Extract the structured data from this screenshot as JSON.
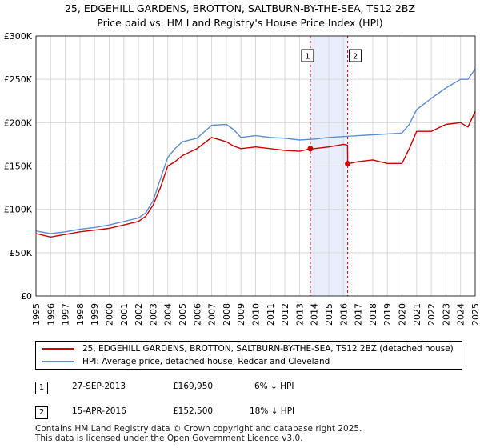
{
  "title_line1": "25, EDGEHILL GARDENS, BROTTON, SALTBURN-BY-THE-SEA, TS12 2BZ",
  "title_line2": "Price paid vs. HM Land Registry's House Price Index (HPI)",
  "legend": {
    "property": "25, EDGEHILL GARDENS, BROTTON, SALTBURN-BY-THE-SEA, TS12 2BZ (detached house)",
    "hpi": "HPI: Average price, detached house, Redcar and Cleveland"
  },
  "colors": {
    "property": "#cc0000",
    "hpi": "#5b8fd4",
    "shade": "#e8eefb",
    "grid": "#d9d9d9",
    "marker_line": "#cc0000"
  },
  "transactions": [
    {
      "num": "1",
      "date": "27-SEP-2013",
      "price": "£169,950",
      "pct": "6% ↓ HPI"
    },
    {
      "num": "2",
      "date": "15-APR-2016",
      "price": "£152,500",
      "pct": "18% ↓ HPI"
    }
  ],
  "footer_line1": "Contains HM Land Registry data © Crown copyright and database right 2025.",
  "footer_line2": "This data is licensed under the Open Government Licence v3.0.",
  "chart_data": {
    "type": "line",
    "title": "25, EDGEHILL GARDENS, BROTTON, SALTBURN-BY-THE-SEA, TS12 2BZ — Price paid vs. HM Land Registry's House Price Index (HPI)",
    "xlabel": "",
    "ylabel": "",
    "xlim": [
      1995,
      2025
    ],
    "ylim": [
      0,
      300000
    ],
    "y_ticks": [
      0,
      50000,
      100000,
      150000,
      200000,
      250000,
      300000
    ],
    "y_tick_labels": [
      "£0",
      "£50K",
      "£100K",
      "£150K",
      "£200K",
      "£250K",
      "£300K"
    ],
    "x_ticks": [
      1995,
      1996,
      1997,
      1998,
      1999,
      2000,
      2001,
      2002,
      2003,
      2004,
      2005,
      2006,
      2007,
      2008,
      2009,
      2010,
      2011,
      2012,
      2013,
      2014,
      2015,
      2016,
      2017,
      2018,
      2019,
      2020,
      2021,
      2022,
      2023,
      2024,
      2025
    ],
    "x_tick_labels": [
      "1995",
      "1996",
      "1997",
      "1998",
      "1999",
      "2000",
      "2001",
      "2002",
      "2003",
      "2004",
      "2005",
      "2006",
      "2007",
      "2008",
      "2009",
      "2010",
      "2011",
      "2012",
      "2013",
      "2014",
      "2015",
      "2016",
      "2017",
      "2018",
      "2019",
      "2020",
      "2021",
      "2022",
      "2023",
      "2024",
      "2025"
    ],
    "shaded_range": [
      2013.74,
      2016.29
    ],
    "sale_markers": [
      {
        "label": "1",
        "x": 2013.74,
        "y": 169950
      },
      {
        "label": "2",
        "x": 2016.29,
        "y": 152500
      }
    ],
    "series": [
      {
        "name": "25, EDGEHILL GARDENS, BROTTON, SALTBURN-BY-THE-SEA, TS12 2BZ (detached house)",
        "x": [
          1995,
          1996,
          1997,
          1998,
          1999,
          2000,
          2001,
          2002,
          2002.5,
          2003,
          2003.5,
          2004,
          2004.5,
          2005,
          2006,
          2007,
          2008,
          2008.5,
          2009,
          2010,
          2011,
          2012,
          2013,
          2013.74,
          2014,
          2015,
          2016,
          2016.28,
          2016.29,
          2017,
          2018,
          2019,
          2020,
          2020.5,
          2021,
          2022,
          2023,
          2024,
          2024.5,
          2025
        ],
        "values": [
          72000,
          68000,
          71000,
          74000,
          76000,
          78000,
          82000,
          86000,
          92000,
          105000,
          125000,
          150000,
          155000,
          162000,
          170000,
          183000,
          178000,
          173000,
          170000,
          172000,
          170000,
          168000,
          167000,
          169950,
          170000,
          172000,
          175000,
          174000,
          152500,
          155000,
          157000,
          153000,
          153000,
          170000,
          190000,
          190000,
          198000,
          200000,
          195000,
          213000
        ]
      },
      {
        "name": "HPI: Average price, detached house, Redcar and Cleveland",
        "x": [
          1995,
          1996,
          1997,
          1998,
          1999,
          2000,
          2001,
          2002,
          2002.5,
          2003,
          2003.5,
          2004,
          2004.5,
          2005,
          2006,
          2007,
          2008,
          2008.5,
          2009,
          2010,
          2011,
          2012,
          2013,
          2014,
          2015,
          2016,
          2017,
          2018,
          2019,
          2020,
          2020.5,
          2021,
          2022,
          2023,
          2024,
          2024.5,
          2025
        ],
        "values": [
          75000,
          72000,
          74000,
          77000,
          79000,
          82000,
          86000,
          90000,
          96000,
          110000,
          135000,
          160000,
          170000,
          178000,
          182000,
          197000,
          198000,
          192000,
          183000,
          185000,
          183000,
          182000,
          180000,
          181000,
          183000,
          184000,
          185000,
          186000,
          187000,
          188000,
          198000,
          215000,
          228000,
          240000,
          250000,
          250000,
          262000
        ]
      }
    ]
  }
}
